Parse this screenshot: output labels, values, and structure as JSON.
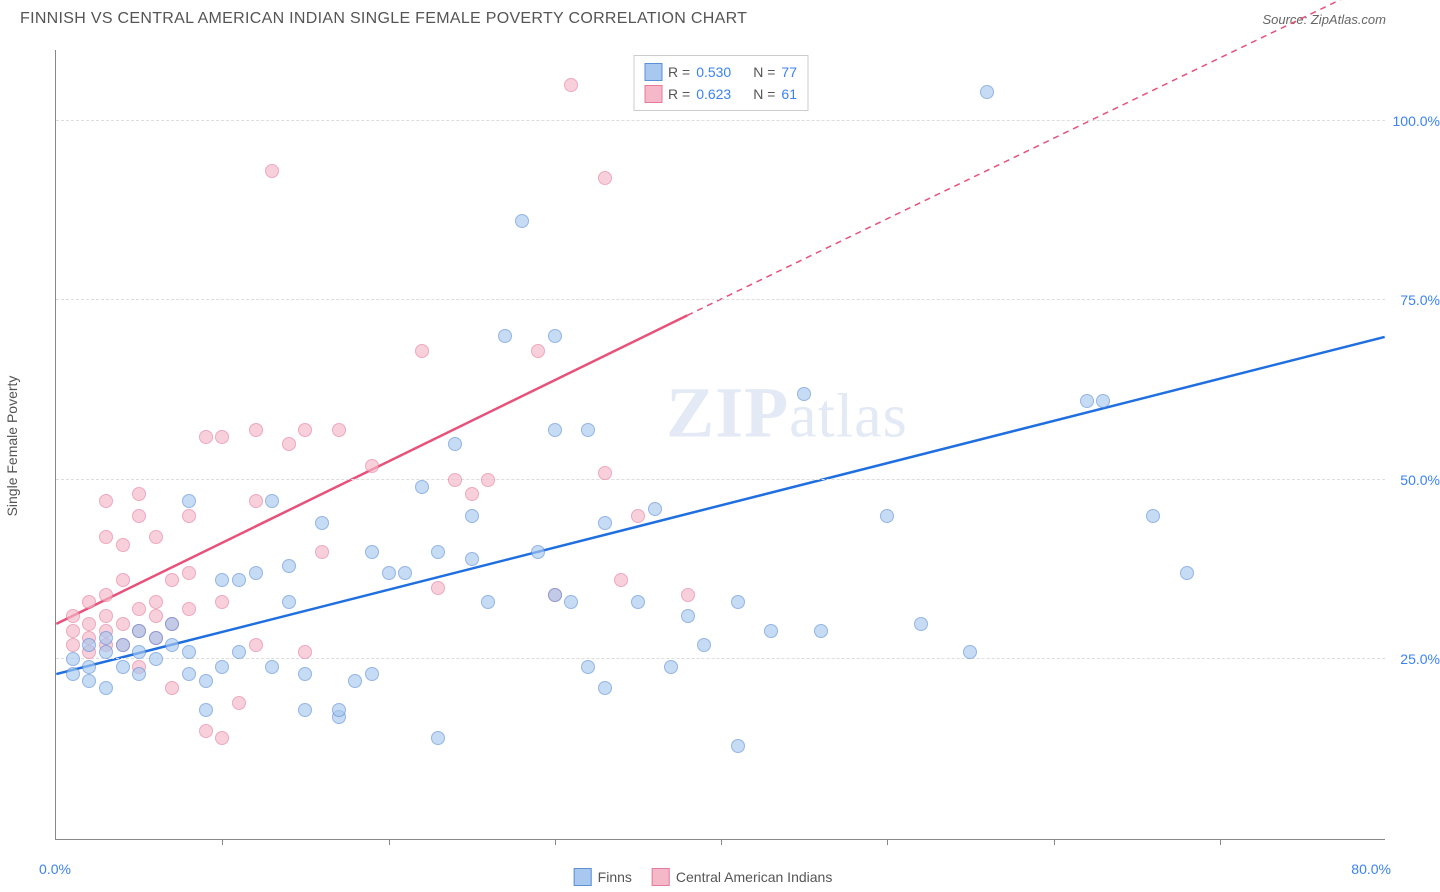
{
  "header": {
    "title": "FINNISH VS CENTRAL AMERICAN INDIAN SINGLE FEMALE POVERTY CORRELATION CHART",
    "source_prefix": "Source: ",
    "source_link": "ZipAtlas.com"
  },
  "chart": {
    "type": "scatter",
    "yaxis_label": "Single Female Poverty",
    "xlim": [
      0,
      80
    ],
    "ylim": [
      0,
      110
    ],
    "yticks": [
      {
        "val": 25,
        "label": "25.0%"
      },
      {
        "val": 50,
        "label": "50.0%"
      },
      {
        "val": 75,
        "label": "75.0%"
      },
      {
        "val": 100,
        "label": "100.0%"
      }
    ],
    "xtick_positions": [
      10,
      20,
      30,
      40,
      50,
      60,
      70
    ],
    "x_origin_label": "0.0%",
    "x_max_label": "80.0%",
    "background_color": "#ffffff",
    "grid_color": "#dddddd",
    "marker_radius": 7,
    "series": {
      "finns": {
        "label": "Finns",
        "fill": "#a8c8ef",
        "stroke": "#5b8fd6",
        "trend_color": "#1f6fe0",
        "trend_width": 2.5,
        "trend_start": [
          0,
          23
        ],
        "trend_end": [
          80,
          70
        ],
        "R": "0.530",
        "N": "77",
        "points": [
          [
            1,
            23
          ],
          [
            1,
            25
          ],
          [
            2,
            22
          ],
          [
            2,
            24
          ],
          [
            2,
            27
          ],
          [
            3,
            26
          ],
          [
            3,
            28
          ],
          [
            3,
            21
          ],
          [
            4,
            27
          ],
          [
            4,
            24
          ],
          [
            5,
            26
          ],
          [
            5,
            29
          ],
          [
            5,
            23
          ],
          [
            6,
            28
          ],
          [
            6,
            25
          ],
          [
            7,
            30
          ],
          [
            7,
            27
          ],
          [
            8,
            26
          ],
          [
            8,
            23
          ],
          [
            8,
            47
          ],
          [
            9,
            18
          ],
          [
            9,
            22
          ],
          [
            10,
            36
          ],
          [
            10,
            24
          ],
          [
            11,
            36
          ],
          [
            11,
            26
          ],
          [
            12,
            37
          ],
          [
            13,
            47
          ],
          [
            13,
            24
          ],
          [
            14,
            33
          ],
          [
            14,
            38
          ],
          [
            15,
            18
          ],
          [
            15,
            23
          ],
          [
            16,
            44
          ],
          [
            17,
            17
          ],
          [
            17,
            18
          ],
          [
            18,
            22
          ],
          [
            19,
            23
          ],
          [
            19,
            40
          ],
          [
            20,
            37
          ],
          [
            21,
            37
          ],
          [
            22,
            49
          ],
          [
            23,
            14
          ],
          [
            23,
            40
          ],
          [
            24,
            55
          ],
          [
            25,
            39
          ],
          [
            25,
            45
          ],
          [
            26,
            33
          ],
          [
            27,
            70
          ],
          [
            28,
            86
          ],
          [
            29,
            40
          ],
          [
            30,
            34
          ],
          [
            30,
            70
          ],
          [
            30,
            57
          ],
          [
            31,
            33
          ],
          [
            32,
            24
          ],
          [
            32,
            57
          ],
          [
            33,
            44
          ],
          [
            33,
            21
          ],
          [
            35,
            33
          ],
          [
            36,
            46
          ],
          [
            37,
            24
          ],
          [
            38,
            31
          ],
          [
            39,
            27
          ],
          [
            41,
            33
          ],
          [
            41,
            13
          ],
          [
            43,
            29
          ],
          [
            45,
            62
          ],
          [
            46,
            29
          ],
          [
            50,
            45
          ],
          [
            52,
            30
          ],
          [
            56,
            104
          ],
          [
            55,
            26
          ],
          [
            62,
            61
          ],
          [
            63,
            61
          ],
          [
            66,
            45
          ],
          [
            68,
            37
          ]
        ]
      },
      "cai": {
        "label": "Central American Indians",
        "fill": "#f5b8c8",
        "stroke": "#e77a9a",
        "trend_color": "#e8517a",
        "trend_width": 2.5,
        "trend_start": [
          0,
          30
        ],
        "trend_end_solid": [
          38,
          73
        ],
        "trend_end_dash": [
          80,
          120
        ],
        "R": "0.623",
        "N": "61",
        "points": [
          [
            1,
            27
          ],
          [
            1,
            29
          ],
          [
            1,
            31
          ],
          [
            2,
            28
          ],
          [
            2,
            30
          ],
          [
            2,
            33
          ],
          [
            2,
            26
          ],
          [
            3,
            29
          ],
          [
            3,
            31
          ],
          [
            3,
            34
          ],
          [
            3,
            42
          ],
          [
            3,
            27
          ],
          [
            3,
            47
          ],
          [
            4,
            30
          ],
          [
            4,
            27
          ],
          [
            4,
            41
          ],
          [
            4,
            36
          ],
          [
            5,
            29
          ],
          [
            5,
            32
          ],
          [
            5,
            48
          ],
          [
            5,
            24
          ],
          [
            5,
            45
          ],
          [
            6,
            33
          ],
          [
            6,
            42
          ],
          [
            6,
            28
          ],
          [
            6,
            31
          ],
          [
            7,
            21
          ],
          [
            7,
            30
          ],
          [
            7,
            36
          ],
          [
            8,
            32
          ],
          [
            8,
            45
          ],
          [
            8,
            37
          ],
          [
            9,
            15
          ],
          [
            9,
            56
          ],
          [
            10,
            56
          ],
          [
            10,
            33
          ],
          [
            10,
            14
          ],
          [
            11,
            19
          ],
          [
            12,
            47
          ],
          [
            12,
            57
          ],
          [
            12,
            27
          ],
          [
            13,
            93
          ],
          [
            14,
            55
          ],
          [
            15,
            57
          ],
          [
            15,
            26
          ],
          [
            16,
            40
          ],
          [
            17,
            57
          ],
          [
            19,
            52
          ],
          [
            22,
            68
          ],
          [
            23,
            35
          ],
          [
            24,
            50
          ],
          [
            25,
            48
          ],
          [
            26,
            50
          ],
          [
            29,
            68
          ],
          [
            30,
            34
          ],
          [
            31,
            105
          ],
          [
            33,
            51
          ],
          [
            33,
            92
          ],
          [
            34,
            36
          ],
          [
            35,
            45
          ],
          [
            38,
            34
          ]
        ]
      }
    },
    "legend_top": {
      "r_label": "R =",
      "n_label": "N ="
    },
    "watermark": "ZIPatlas"
  }
}
